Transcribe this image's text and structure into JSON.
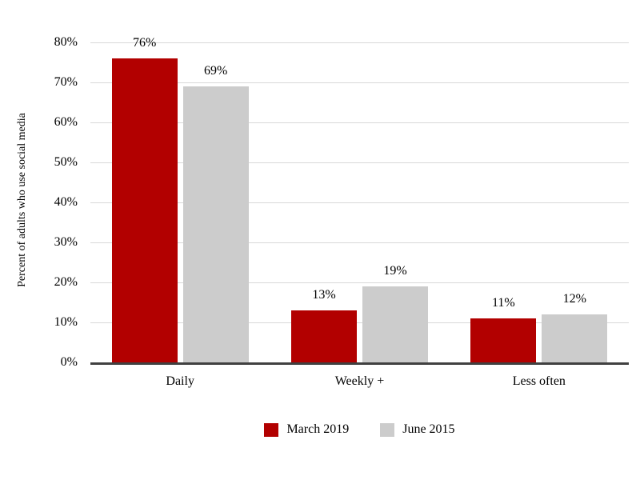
{
  "chart_data": {
    "type": "bar",
    "title": "",
    "xlabel": "",
    "ylabel": "Percent of adults who use social media",
    "categories": [
      "Daily",
      "Weekly +",
      "Less often"
    ],
    "series": [
      {
        "name": "March 2019",
        "color": "#b20000",
        "values": [
          76,
          13,
          11
        ]
      },
      {
        "name": "June 2015",
        "color": "#cccccc",
        "values": [
          69,
          19,
          12
        ]
      }
    ],
    "data_label_format": "{value}%",
    "ylim": [
      0,
      80
    ],
    "y_ticks": [
      {
        "value": 0,
        "label": "0%"
      },
      {
        "value": 10,
        "label": "10%"
      },
      {
        "value": 20,
        "label": "20%"
      },
      {
        "value": 30,
        "label": "30%"
      },
      {
        "value": 40,
        "label": "40%"
      },
      {
        "value": 50,
        "label": "50%"
      },
      {
        "value": 60,
        "label": "60%"
      },
      {
        "value": 70,
        "label": "70%"
      },
      {
        "value": 80,
        "label": "80%"
      }
    ],
    "grid": true,
    "legend_position": "bottom"
  },
  "colors": {
    "series_march_2019": "#b20000",
    "series_june_2015": "#cccccc",
    "gridline": "#d9d9d9",
    "axis_line": "#404040",
    "text": "#000000",
    "background": "#ffffff"
  }
}
